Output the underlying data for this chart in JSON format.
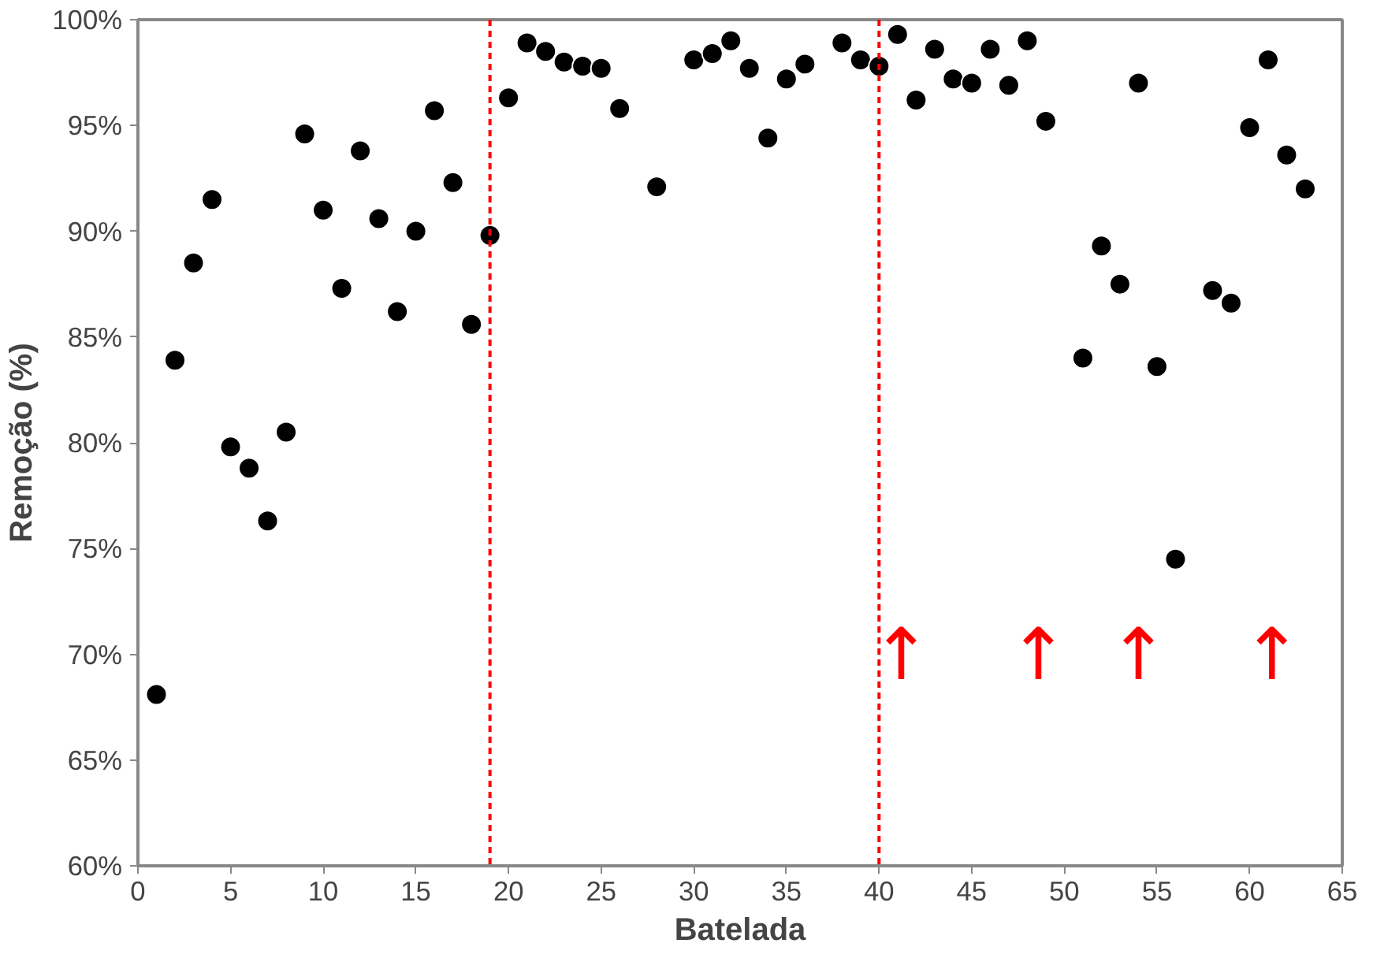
{
  "chart_data": {
    "type": "scatter",
    "xlabel": "Batelada",
    "ylabel": "Remoção (%)",
    "x": [
      1,
      2,
      3,
      4,
      5,
      6,
      7,
      8,
      9,
      10,
      11,
      12,
      13,
      14,
      15,
      16,
      17,
      18,
      19,
      20,
      21,
      22,
      23,
      24,
      25,
      26,
      28,
      30,
      31,
      32,
      33,
      34,
      35,
      36,
      38,
      39,
      40,
      41,
      42,
      43,
      44,
      45,
      46,
      47,
      48,
      49,
      51,
      52,
      53,
      54,
      55,
      56,
      58,
      59,
      60,
      61,
      62,
      63
    ],
    "series": [
      {
        "color": "#000000",
        "values": [
          68.1,
          83.9,
          88.5,
          91.5,
          79.8,
          78.8,
          76.3,
          80.5,
          94.6,
          91.0,
          87.3,
          93.8,
          90.6,
          86.2,
          90.0,
          95.7,
          92.3,
          85.6,
          89.8,
          96.3,
          98.9,
          98.5,
          98.0,
          97.8,
          97.7,
          95.8,
          92.1,
          98.1,
          98.4,
          99.0,
          97.7,
          94.4,
          97.2,
          97.9,
          98.9,
          98.1,
          97.8,
          99.3,
          96.2,
          98.6,
          97.2,
          97.0,
          98.6,
          96.9,
          99.0,
          95.2,
          84.0,
          89.3,
          87.5,
          97.0,
          83.6,
          74.5,
          87.2,
          86.6,
          94.9,
          98.1,
          93.6,
          92.0
        ]
      }
    ],
    "marker": "circle",
    "xlim": [
      0,
      65
    ],
    "xticks": [
      0,
      5,
      10,
      15,
      20,
      25,
      30,
      35,
      40,
      45,
      50,
      55,
      60,
      65
    ],
    "ylim": [
      60,
      100
    ],
    "yticks": [
      {
        "value": 60,
        "label": "60%"
      },
      {
        "value": 65,
        "label": "65%"
      },
      {
        "value": 70,
        "label": "70%"
      },
      {
        "value": 75,
        "label": "75%"
      },
      {
        "value": 80,
        "label": "80%"
      },
      {
        "value": 85,
        "label": "85%"
      },
      {
        "value": 90,
        "label": "90%"
      },
      {
        "value": 95,
        "label": "95%"
      },
      {
        "value": 100,
        "label": "100%"
      }
    ],
    "ref_lines": [
      {
        "axis": "x",
        "value": 19,
        "color": "#ff0000",
        "line_style": "dashed"
      },
      {
        "axis": "x",
        "value": 40,
        "color": "#ff0000",
        "line_style": "dashed"
      }
    ],
    "annotations": [
      "↑",
      "↑",
      "↑",
      "↑"
    ]
  }
}
